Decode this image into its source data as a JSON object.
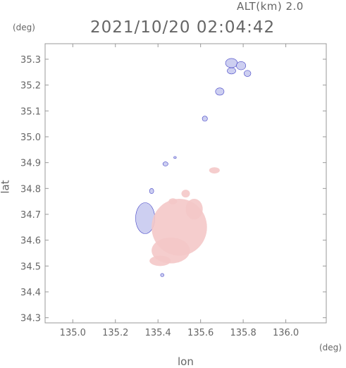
{
  "header": {
    "altitude_label": "ALT(km) 2.0",
    "timestamp": "2021/10/20 02:04:42",
    "y_unit": "(deg)",
    "x_unit": "(deg)",
    "x_axis_label": "lon",
    "y_axis_label": "lat"
  },
  "chart_data": {
    "type": "heatmap",
    "x_ticks": [
      "135.0",
      "135.2",
      "135.4",
      "135.6",
      "135.8",
      "136.0"
    ],
    "y_ticks": [
      "34.3",
      "34.4",
      "34.5",
      "34.6",
      "34.7",
      "34.8",
      "34.9",
      "35.0",
      "35.1",
      "35.2",
      "35.3"
    ],
    "xlim": [
      134.87,
      136.19
    ],
    "ylim": [
      34.28,
      35.36
    ],
    "colors": {
      "positive": "#f4c8c8",
      "negative": "#c8caf0",
      "edge": "#3030c0"
    },
    "blobs": [
      {
        "sign": "negative",
        "lon": 135.745,
        "lat": 35.285,
        "r_lon": 0.028,
        "r_lat": 0.018
      },
      {
        "sign": "negative",
        "lon": 135.79,
        "lat": 35.275,
        "r_lon": 0.022,
        "r_lat": 0.016
      },
      {
        "sign": "negative",
        "lon": 135.82,
        "lat": 35.245,
        "r_lon": 0.016,
        "r_lat": 0.012
      },
      {
        "sign": "negative",
        "lon": 135.745,
        "lat": 35.255,
        "r_lon": 0.02,
        "r_lat": 0.012
      },
      {
        "sign": "negative",
        "lon": 135.69,
        "lat": 35.175,
        "r_lon": 0.02,
        "r_lat": 0.014
      },
      {
        "sign": "negative",
        "lon": 135.62,
        "lat": 35.07,
        "r_lon": 0.012,
        "r_lat": 0.01
      },
      {
        "sign": "negative",
        "lon": 135.435,
        "lat": 34.895,
        "r_lon": 0.012,
        "r_lat": 0.008
      },
      {
        "sign": "negative",
        "lon": 135.48,
        "lat": 34.92,
        "r_lon": 0.006,
        "r_lat": 0.004
      },
      {
        "sign": "negative",
        "lon": 135.34,
        "lat": 34.685,
        "r_lon": 0.045,
        "r_lat": 0.06
      },
      {
        "sign": "negative",
        "lon": 135.42,
        "lat": 34.465,
        "r_lon": 0.008,
        "r_lat": 0.006
      },
      {
        "sign": "negative",
        "lon": 135.37,
        "lat": 34.79,
        "r_lon": 0.01,
        "r_lat": 0.01
      },
      {
        "sign": "positive",
        "lon": 135.665,
        "lat": 34.87,
        "r_lon": 0.025,
        "r_lat": 0.012
      },
      {
        "sign": "positive",
        "lon": 135.5,
        "lat": 34.65,
        "r_lon": 0.13,
        "r_lat": 0.11
      },
      {
        "sign": "positive",
        "lon": 135.46,
        "lat": 34.56,
        "r_lon": 0.09,
        "r_lat": 0.05
      },
      {
        "sign": "positive",
        "lon": 135.41,
        "lat": 34.52,
        "r_lon": 0.05,
        "r_lat": 0.02
      },
      {
        "sign": "positive",
        "lon": 135.57,
        "lat": 34.72,
        "r_lon": 0.04,
        "r_lat": 0.04
      },
      {
        "sign": "positive",
        "lon": 135.53,
        "lat": 34.78,
        "r_lon": 0.02,
        "r_lat": 0.015
      },
      {
        "sign": "positive",
        "lon": 135.47,
        "lat": 34.75,
        "r_lon": 0.02,
        "r_lat": 0.012
      }
    ]
  }
}
